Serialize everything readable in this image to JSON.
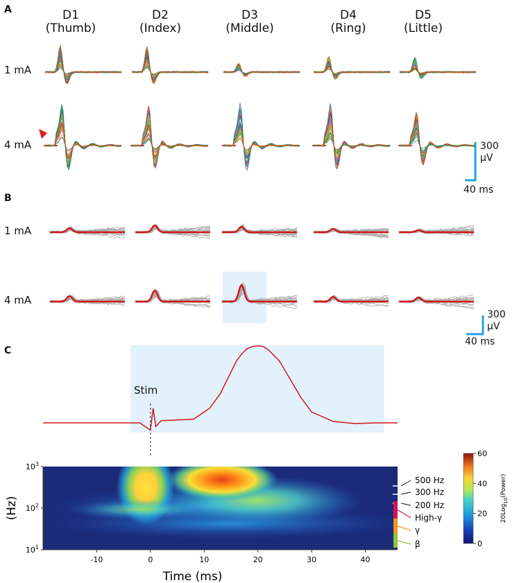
{
  "panels": {
    "a": "A",
    "b": "B",
    "c": "C"
  },
  "digits": [
    {
      "name": "D1",
      "sub": "(Thumb)"
    },
    {
      "name": "D2",
      "sub": "(Index)"
    },
    {
      "name": "D3",
      "sub": "(Middle)"
    },
    {
      "name": "D4",
      "sub": "(Ring)"
    },
    {
      "name": "D5",
      "sub": "(Little)"
    }
  ],
  "rows": [
    "1 mA",
    "4 mA"
  ],
  "scale_bar": {
    "v": "300",
    "v_unit": "µV",
    "t": "40 ms"
  },
  "colors": {
    "trace": "#d01818",
    "bar": "#1fa0e0",
    "highlight": "#e3f1fb",
    "arrow": "#e21b1b"
  },
  "chart_data": [
    {
      "type": "line",
      "title": "",
      "annotation": "Stim",
      "x": [
        -20,
        -2,
        0,
        0.5,
        1,
        2,
        8,
        10,
        11,
        12,
        13,
        14,
        15,
        16,
        17,
        18,
        19,
        20,
        21,
        22,
        24,
        26,
        28,
        30,
        34,
        38,
        42,
        46
      ],
      "series": [
        {
          "values": [
            0,
            0,
            -0.1,
            0.2,
            -0.05,
            0.03,
            0.05,
            0.15,
            0.2,
            0.3,
            0.4,
            0.55,
            0.7,
            0.85,
            0.95,
            1.02,
            1.05,
            1.06,
            1.05,
            1.0,
            0.85,
            0.6,
            0.35,
            0.15,
            0.02,
            -0.01,
            0,
            0
          ]
        }
      ]
    },
    {
      "type": "heatmap",
      "xlabel": "Time (ms)",
      "ylabel": "(Hz)",
      "x_ticks": [
        "-10",
        "0",
        "10",
        "20",
        "30",
        "40"
      ],
      "y_ticks": [
        {
          "base": "10",
          "exp": "3"
        },
        {
          "base": "10",
          "exp": "2"
        },
        {
          "base": "10",
          "exp": "1"
        }
      ],
      "xlim": [
        -20,
        46
      ],
      "ylim": [
        10,
        1000
      ],
      "colorbar": {
        "label_prefix": "20Log",
        "label_sub": "10",
        "label_suffix": "(Power)",
        "ticks": [
          "60",
          "40",
          "20",
          "0"
        ],
        "range": [
          0,
          60
        ]
      },
      "band_labels": [
        {
          "text": "500 Hz",
          "color": "#111111"
        },
        {
          "text": "300 Hz",
          "color": "#111111"
        },
        {
          "text": "200 Hz",
          "color": "#111111"
        },
        {
          "text": "High-γ",
          "color": "#d4145a"
        },
        {
          "text": "γ",
          "color": "#f7941d"
        },
        {
          "text": "β",
          "color": "#8dc63f"
        }
      ]
    }
  ]
}
